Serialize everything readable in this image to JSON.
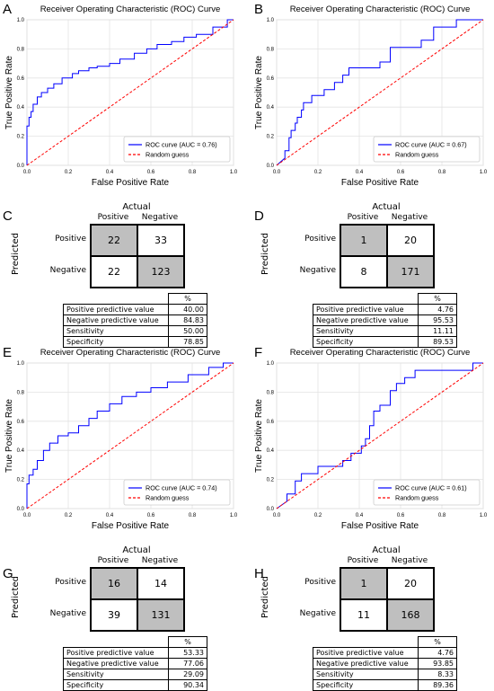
{
  "chart_data": [
    {
      "panel": "A",
      "type": "line",
      "title": "Receiver Operating Characteristic (ROC) Curve",
      "xlabel": "False Positive Rate",
      "ylabel": "True Positive Rate",
      "xlim": [
        0,
        1
      ],
      "ylim": [
        0,
        1
      ],
      "grid": true,
      "legend": "bottom-right",
      "series": [
        {
          "name": "ROC curve (AUC = 0.76)",
          "color": "#0000ff",
          "x": [
            0,
            0,
            0.01,
            0.01,
            0.02,
            0.02,
            0.03,
            0.03,
            0.05,
            0.05,
            0.07,
            0.07,
            0.1,
            0.1,
            0.13,
            0.13,
            0.17,
            0.17,
            0.22,
            0.22,
            0.25,
            0.25,
            0.3,
            0.3,
            0.34,
            0.34,
            0.4,
            0.4,
            0.45,
            0.45,
            0.52,
            0.52,
            0.58,
            0.58,
            0.63,
            0.63,
            0.7,
            0.7,
            0.76,
            0.76,
            0.82,
            0.82,
            0.9,
            0.9,
            0.97,
            0.97,
            1
          ],
          "y": [
            0,
            0.27,
            0.27,
            0.33,
            0.33,
            0.37,
            0.37,
            0.42,
            0.42,
            0.47,
            0.47,
            0.5,
            0.5,
            0.53,
            0.53,
            0.56,
            0.56,
            0.6,
            0.6,
            0.63,
            0.63,
            0.65,
            0.65,
            0.67,
            0.67,
            0.68,
            0.68,
            0.7,
            0.7,
            0.73,
            0.73,
            0.77,
            0.77,
            0.8,
            0.8,
            0.83,
            0.83,
            0.85,
            0.85,
            0.88,
            0.88,
            0.9,
            0.9,
            0.95,
            0.95,
            1,
            1
          ]
        },
        {
          "name": "Random guess",
          "color": "#ff0000",
          "dashed": true,
          "x": [
            0,
            1
          ],
          "y": [
            0,
            1
          ]
        }
      ]
    },
    {
      "panel": "B",
      "type": "line",
      "title": "Receiver Operating Characteristic (ROC) Curve",
      "xlabel": "False Positive Rate",
      "ylabel": "True Positive Rate",
      "xlim": [
        0,
        1
      ],
      "ylim": [
        0,
        1
      ],
      "grid": true,
      "legend": "bottom-right",
      "series": [
        {
          "name": "ROC curve (AUC = 0.67)",
          "color": "#0000ff",
          "x": [
            0,
            0.04,
            0.04,
            0.06,
            0.06,
            0.07,
            0.07,
            0.09,
            0.09,
            0.1,
            0.1,
            0.12,
            0.12,
            0.13,
            0.13,
            0.17,
            0.17,
            0.23,
            0.23,
            0.28,
            0.28,
            0.32,
            0.32,
            0.35,
            0.35,
            0.5,
            0.5,
            0.55,
            0.55,
            0.7,
            0.7,
            0.76,
            0.76,
            0.87,
            0.87,
            1
          ],
          "y": [
            0,
            0.05,
            0.1,
            0.1,
            0.19,
            0.19,
            0.24,
            0.24,
            0.29,
            0.29,
            0.33,
            0.33,
            0.38,
            0.38,
            0.43,
            0.43,
            0.48,
            0.48,
            0.52,
            0.52,
            0.57,
            0.57,
            0.62,
            0.62,
            0.67,
            0.67,
            0.71,
            0.71,
            0.81,
            0.81,
            0.86,
            0.86,
            0.95,
            0.95,
            1,
            1
          ]
        },
        {
          "name": "Random guess",
          "color": "#ff0000",
          "dashed": true,
          "x": [
            0,
            1
          ],
          "y": [
            0,
            1
          ]
        }
      ]
    },
    {
      "panel": "E",
      "type": "line",
      "title": "Receiver Operating Characteristic (ROC) Curve",
      "xlabel": "False Positive Rate",
      "ylabel": "True Positive Rate",
      "xlim": [
        0,
        1
      ],
      "ylim": [
        0,
        1
      ],
      "grid": true,
      "legend": "bottom-right",
      "series": [
        {
          "name": "ROC curve (AUC = 0.74)",
          "color": "#0000ff",
          "x": [
            0,
            0,
            0.01,
            0.01,
            0.03,
            0.03,
            0.05,
            0.05,
            0.08,
            0.08,
            0.11,
            0.11,
            0.15,
            0.15,
            0.2,
            0.2,
            0.25,
            0.25,
            0.3,
            0.3,
            0.34,
            0.34,
            0.4,
            0.4,
            0.46,
            0.46,
            0.53,
            0.53,
            0.6,
            0.6,
            0.68,
            0.68,
            0.78,
            0.78,
            0.88,
            0.88,
            0.95,
            0.95,
            1
          ],
          "y": [
            0,
            0.17,
            0.17,
            0.23,
            0.23,
            0.27,
            0.27,
            0.33,
            0.33,
            0.4,
            0.4,
            0.45,
            0.45,
            0.5,
            0.5,
            0.52,
            0.52,
            0.57,
            0.57,
            0.62,
            0.62,
            0.67,
            0.67,
            0.72,
            0.72,
            0.77,
            0.77,
            0.8,
            0.8,
            0.83,
            0.83,
            0.87,
            0.87,
            0.92,
            0.92,
            0.97,
            0.97,
            1,
            1
          ]
        },
        {
          "name": "Random guess",
          "color": "#ff0000",
          "dashed": true,
          "x": [
            0,
            1
          ],
          "y": [
            0,
            1
          ]
        }
      ]
    },
    {
      "panel": "F",
      "type": "line",
      "title": "Receiver Operating Characteristic (ROC) Curve",
      "xlabel": "False Positive Rate",
      "ylabel": "True Positive Rate",
      "xlim": [
        0,
        1
      ],
      "ylim": [
        0,
        1
      ],
      "grid": true,
      "legend": "bottom-right",
      "series": [
        {
          "name": "ROC curve (AUC = 0.61)",
          "color": "#0000ff",
          "x": [
            0,
            0.05,
            0.05,
            0.09,
            0.09,
            0.12,
            0.12,
            0.2,
            0.2,
            0.32,
            0.32,
            0.36,
            0.36,
            0.41,
            0.41,
            0.43,
            0.43,
            0.45,
            0.45,
            0.47,
            0.47,
            0.5,
            0.5,
            0.55,
            0.55,
            0.58,
            0.58,
            0.62,
            0.62,
            0.67,
            0.67,
            0.95,
            0.95,
            1
          ],
          "y": [
            0,
            0.05,
            0.1,
            0.1,
            0.19,
            0.19,
            0.24,
            0.24,
            0.29,
            0.29,
            0.33,
            0.33,
            0.38,
            0.38,
            0.43,
            0.43,
            0.48,
            0.48,
            0.57,
            0.57,
            0.67,
            0.67,
            0.71,
            0.71,
            0.81,
            0.81,
            0.86,
            0.86,
            0.9,
            0.9,
            0.95,
            0.95,
            1,
            1
          ]
        },
        {
          "name": "Random guess",
          "color": "#ff0000",
          "dashed": true,
          "x": [
            0,
            1
          ],
          "y": [
            0,
            1
          ]
        }
      ]
    }
  ],
  "panels": {
    "A": "A",
    "B": "B",
    "C": "C",
    "D": "D",
    "E": "E",
    "F": "F",
    "G": "G",
    "H": "H"
  },
  "ticks": [
    "0.0",
    "0.2",
    "0.4",
    "0.6",
    "0.8",
    "1.0"
  ],
  "matrices": [
    {
      "panel": "C",
      "actual": "Actual",
      "predicted": "Predicted",
      "col_pos": "Positive",
      "col_neg": "Negative",
      "row_pos": "Positive",
      "row_neg": "Negative",
      "tp": "22",
      "fp": "33",
      "fn": "22",
      "tn": "123",
      "pct": "%",
      "metrics": [
        [
          "Positive predictive value",
          "40.00"
        ],
        [
          "Negative predictive value",
          "84.83"
        ],
        [
          "Sensitivity",
          "50.00"
        ],
        [
          "Specificity",
          "78.85"
        ]
      ]
    },
    {
      "panel": "D",
      "actual": "Actual",
      "predicted": "Predicted",
      "col_pos": "Positive",
      "col_neg": "Negative",
      "row_pos": "Positive",
      "row_neg": "Negative",
      "tp": "1",
      "fp": "20",
      "fn": "8",
      "tn": "171",
      "pct": "%",
      "metrics": [
        [
          "Positive predictive value",
          "4.76"
        ],
        [
          "Negative predictive value",
          "95.53"
        ],
        [
          "Sensitivity",
          "11.11"
        ],
        [
          "Specificity",
          "89.53"
        ]
      ]
    },
    {
      "panel": "G",
      "actual": "Actual",
      "predicted": "Predicted",
      "col_pos": "Positive",
      "col_neg": "Negative",
      "row_pos": "Positive",
      "row_neg": "Negative",
      "tp": "16",
      "fp": "14",
      "fn": "39",
      "tn": "131",
      "pct": "%",
      "metrics": [
        [
          "Positive predictive value",
          "53.33"
        ],
        [
          "Negative predictive value",
          "77.06"
        ],
        [
          "Sensitivity",
          "29.09"
        ],
        [
          "Specificity",
          "90.34"
        ]
      ]
    },
    {
      "panel": "H",
      "actual": "Actual",
      "predicted": "Predicted",
      "col_pos": "Positive",
      "col_neg": "Negative",
      "row_pos": "Positive",
      "row_neg": "Negative",
      "tp": "1",
      "fp": "20",
      "fn": "11",
      "tn": "168",
      "pct": "%",
      "metrics": [
        [
          "Positive predictive value",
          "4.76"
        ],
        [
          "Negative predictive value",
          "93.85"
        ],
        [
          "Sensitivity",
          "8.33"
        ],
        [
          "Specificity",
          "89.36"
        ]
      ]
    }
  ]
}
